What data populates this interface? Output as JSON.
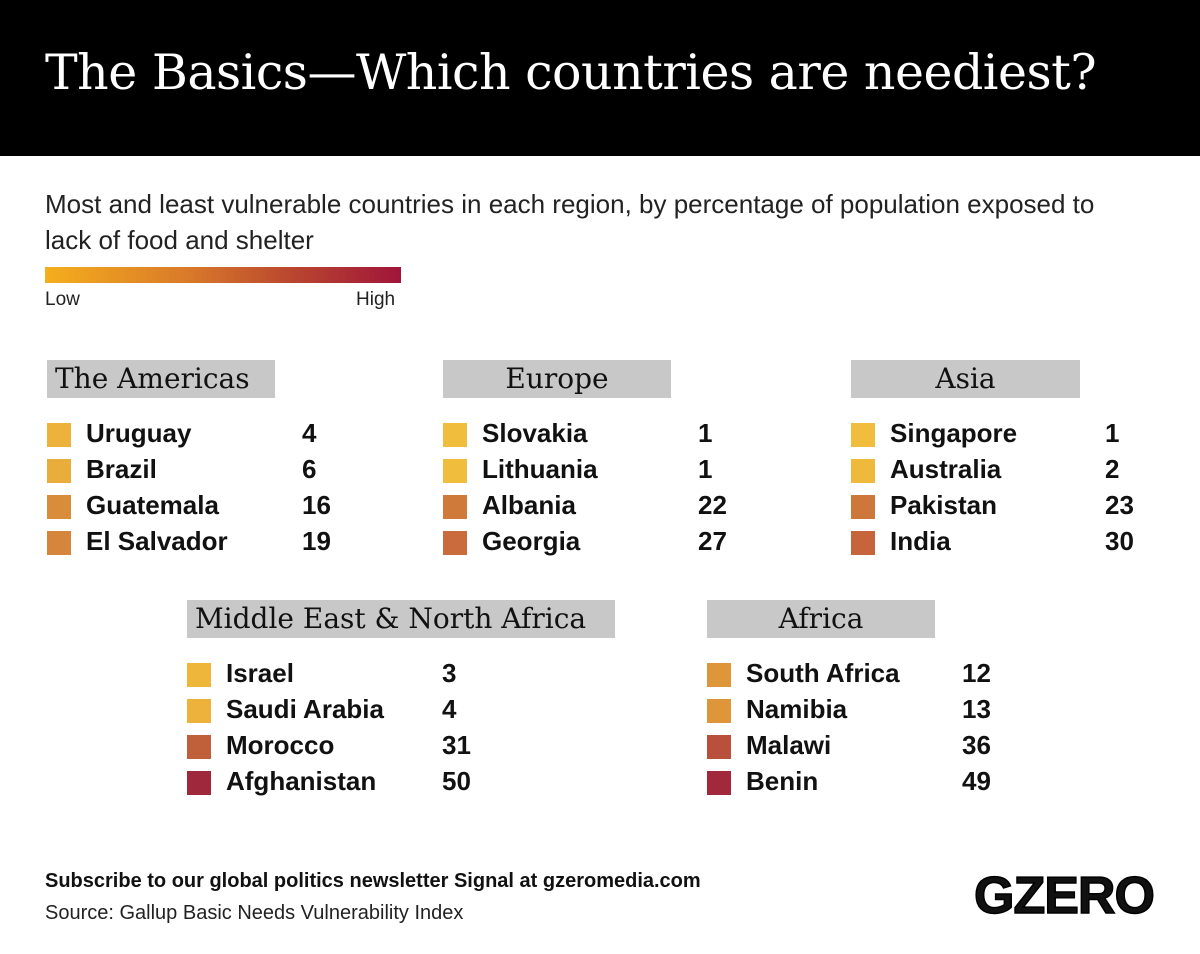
{
  "header": {
    "title": "The Basics—Which countries are neediest?"
  },
  "subtitle": "Most and least vulnerable countries in each region, by percentage of population exposed to lack of food and shelter",
  "legend": {
    "low": "Low",
    "high": "High",
    "gradient_colors": [
      "#f5ae1c",
      "#d97a2a",
      "#b9452f",
      "#a0153a"
    ]
  },
  "chart_data": {
    "type": "table",
    "title": "The Basics—Which countries are neediest?",
    "regions": [
      {
        "name": "The Americas",
        "items": [
          {
            "country": "Uruguay",
            "value": 4,
            "color": "#ecb23c"
          },
          {
            "country": "Brazil",
            "value": 6,
            "color": "#e9ad3b"
          },
          {
            "country": "Guatemala",
            "value": 16,
            "color": "#d98c3a"
          },
          {
            "country": "El Salvador",
            "value": 19,
            "color": "#d6863c"
          }
        ]
      },
      {
        "name": "Europe",
        "items": [
          {
            "country": "Slovakia",
            "value": 1,
            "color": "#f0bd3c"
          },
          {
            "country": "Lithuania",
            "value": 1,
            "color": "#f0bd3c"
          },
          {
            "country": "Albania",
            "value": 22,
            "color": "#cf7a3a"
          },
          {
            "country": "Georgia",
            "value": 27,
            "color": "#c96b3c"
          }
        ]
      },
      {
        "name": "Asia",
        "items": [
          {
            "country": "Singapore",
            "value": 1,
            "color": "#f0bd3c"
          },
          {
            "country": "Australia",
            "value": 2,
            "color": "#efba3c"
          },
          {
            "country": "Pakistan",
            "value": 23,
            "color": "#cd773b"
          },
          {
            "country": "India",
            "value": 30,
            "color": "#c6643c"
          }
        ]
      },
      {
        "name": "Middle East & North Africa",
        "items": [
          {
            "country": "Israel",
            "value": 3,
            "color": "#eeb73c"
          },
          {
            "country": "Saudi Arabia",
            "value": 4,
            "color": "#ecb23c"
          },
          {
            "country": "Morocco",
            "value": 31,
            "color": "#c0603a"
          },
          {
            "country": "Afghanistan",
            "value": 50,
            "color": "#a0283c"
          }
        ]
      },
      {
        "name": "Africa",
        "items": [
          {
            "country": "South Africa",
            "value": 12,
            "color": "#de963a"
          },
          {
            "country": "Namibia",
            "value": 13,
            "color": "#dd963a"
          },
          {
            "country": "Malawi",
            "value": 36,
            "color": "#b8503c"
          },
          {
            "country": "Benin",
            "value": 49,
            "color": "#a2293c"
          }
        ]
      }
    ]
  },
  "footer": {
    "subscribe": "Subscribe to our global politics newsletter Signal at gzeromedia.com",
    "source": "Source: Gallup Basic Needs Vulnerability Index",
    "logo": "GZERO"
  }
}
